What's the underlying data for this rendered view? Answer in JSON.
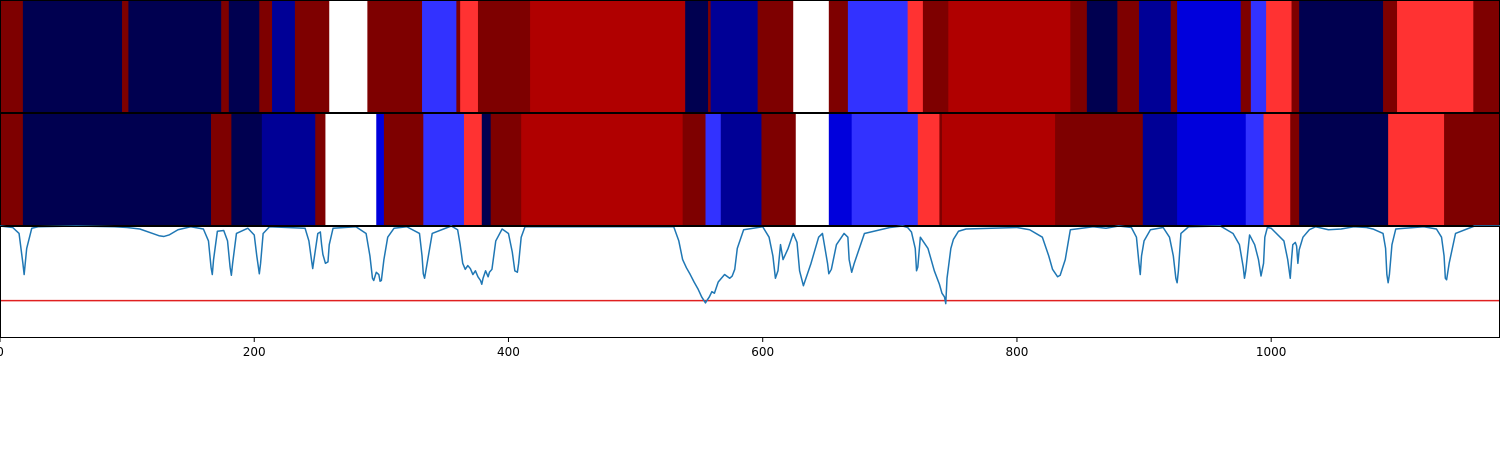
{
  "colors": {
    "navy": "#000050",
    "darkblue": "#000096",
    "blue": "#0000dc",
    "lightblue": "#3232ff",
    "white": "#ffffff",
    "lightred": "#ff3232",
    "red": "#b00000",
    "darkred": "#7e0000",
    "line": "#1f77b4",
    "threshold": "#e02020",
    "axes": "#000000"
  },
  "chart_data": [
    {
      "type": "heatmap",
      "xlim": [
        0,
        1180
      ],
      "segments": [
        [
          0,
          18,
          "darkred"
        ],
        [
          18,
          96,
          "navy"
        ],
        [
          96,
          101,
          "darkred"
        ],
        [
          101,
          174,
          "navy"
        ],
        [
          174,
          180,
          "darkred"
        ],
        [
          180,
          204,
          "navy"
        ],
        [
          204,
          214,
          "darkred"
        ],
        [
          214,
          232,
          "darkblue"
        ],
        [
          232,
          259,
          "darkred"
        ],
        [
          259,
          289,
          "white"
        ],
        [
          289,
          332,
          "darkred"
        ],
        [
          332,
          359,
          "lightblue"
        ],
        [
          359,
          362,
          "darkred"
        ],
        [
          362,
          376,
          "lightred"
        ],
        [
          376,
          417,
          "darkred"
        ],
        [
          417,
          539,
          "red"
        ],
        [
          539,
          557,
          "navy"
        ],
        [
          557,
          559,
          "darkred"
        ],
        [
          559,
          596,
          "darkblue"
        ],
        [
          596,
          624,
          "darkred"
        ],
        [
          624,
          652,
          "white"
        ],
        [
          652,
          667,
          "darkred"
        ],
        [
          667,
          714,
          "lightblue"
        ],
        [
          714,
          726,
          "lightred"
        ],
        [
          726,
          746,
          "darkred"
        ],
        [
          746,
          842,
          "red"
        ],
        [
          842,
          855,
          "darkred"
        ],
        [
          855,
          879,
          "navy"
        ],
        [
          879,
          896,
          "darkred"
        ],
        [
          896,
          921,
          "darkblue"
        ],
        [
          921,
          926,
          "darkred"
        ],
        [
          926,
          976,
          "blue"
        ],
        [
          976,
          984,
          "darkred"
        ],
        [
          984,
          996,
          "lightblue"
        ],
        [
          996,
          1016,
          "lightred"
        ],
        [
          1016,
          1022,
          "darkred"
        ],
        [
          1022,
          1088,
          "navy"
        ],
        [
          1088,
          1099,
          "darkred"
        ],
        [
          1099,
          1159,
          "lightred"
        ],
        [
          1159,
          1180,
          "darkred"
        ]
      ]
    },
    {
      "type": "heatmap",
      "xlim": [
        0,
        1180
      ],
      "segments": [
        [
          0,
          18,
          "darkred"
        ],
        [
          18,
          166,
          "navy"
        ],
        [
          166,
          182,
          "darkred"
        ],
        [
          182,
          206,
          "navy"
        ],
        [
          206,
          248,
          "darkblue"
        ],
        [
          248,
          256,
          "darkred"
        ],
        [
          256,
          296,
          "white"
        ],
        [
          296,
          302,
          "blue"
        ],
        [
          302,
          333,
          "darkred"
        ],
        [
          333,
          365,
          "lightblue"
        ],
        [
          365,
          379,
          "lightred"
        ],
        [
          379,
          386,
          "navy"
        ],
        [
          386,
          410,
          "darkred"
        ],
        [
          410,
          537,
          "red"
        ],
        [
          537,
          555,
          "darkred"
        ],
        [
          555,
          567,
          "lightblue"
        ],
        [
          567,
          599,
          "darkblue"
        ],
        [
          599,
          626,
          "darkred"
        ],
        [
          626,
          652,
          "white"
        ],
        [
          652,
          670,
          "blue"
        ],
        [
          670,
          722,
          "lightblue"
        ],
        [
          722,
          739,
          "lightred"
        ],
        [
          739,
          741,
          "darkred"
        ],
        [
          741,
          830,
          "red"
        ],
        [
          830,
          899,
          "darkred"
        ],
        [
          899,
          926,
          "darkblue"
        ],
        [
          926,
          980,
          "blue"
        ],
        [
          980,
          994,
          "lightblue"
        ],
        [
          994,
          1015,
          "lightred"
        ],
        [
          1015,
          1022,
          "darkred"
        ],
        [
          1022,
          1092,
          "navy"
        ],
        [
          1092,
          1136,
          "lightred"
        ],
        [
          1136,
          1180,
          "darkred"
        ]
      ]
    },
    {
      "type": "line",
      "xlim": [
        0,
        1180
      ],
      "ylim": [
        -0.5,
        1.0
      ],
      "series": [
        {
          "color": "line",
          "x": [
            0,
            10,
            15,
            18,
            19,
            21,
            25,
            30,
            60,
            90,
            100,
            110,
            120,
            125,
            129,
            133,
            140,
            150,
            160,
            164,
            166,
            167,
            168,
            171,
            176,
            179,
            181,
            182,
            183,
            186,
            195,
            200,
            202,
            204,
            205,
            207,
            212,
            240,
            243,
            245,
            246,
            247,
            250,
            252,
            253,
            254,
            256,
            258,
            259,
            262,
            280,
            288,
            291,
            293,
            294,
            296,
            298,
            299,
            300,
            302,
            305,
            310,
            320,
            330,
            332,
            333,
            334,
            336,
            340,
            355,
            360,
            362,
            364,
            366,
            368,
            370,
            372,
            374,
            376,
            378,
            379,
            380,
            382,
            384,
            385,
            387,
            390,
            395,
            400,
            403,
            405,
            407,
            408,
            410,
            413,
            530,
            534,
            537,
            540,
            543,
            546,
            549,
            552,
            555,
            556,
            558,
            560,
            562,
            565,
            570,
            574,
            576,
            578,
            580,
            585,
            600,
            605,
            608,
            610,
            612,
            614,
            616,
            620,
            624,
            627,
            629,
            632,
            638,
            644,
            647,
            649,
            651,
            652,
            654,
            658,
            664,
            667,
            668,
            670,
            672,
            680,
            700,
            710,
            714,
            717,
            720,
            721,
            722,
            724,
            730,
            735,
            739,
            741,
            743,
            744,
            745,
            748,
            750,
            754,
            760,
            780,
            800,
            810,
            820,
            825,
            828,
            830,
            832,
            834,
            838,
            842,
            860,
            870,
            880,
            890,
            894,
            896,
            897,
            898,
            900,
            905,
            915,
            920,
            923,
            925,
            926,
            927,
            929,
            935,
            960,
            970,
            975,
            978,
            979,
            980,
            983,
            987,
            990,
            992,
            994,
            995,
            997,
            1000,
            1010,
            1013,
            1015,
            1016,
            1017,
            1019,
            1020,
            1021,
            1022,
            1025,
            1030,
            1035,
            1045,
            1055,
            1065,
            1075,
            1080,
            1088,
            1090,
            1091,
            1092,
            1093,
            1095,
            1098,
            1120,
            1130,
            1134,
            1136,
            1137,
            1138,
            1140,
            1145,
            1160,
            1180
          ],
          "y": [
            1.0,
            0.98,
            0.9,
            0.5,
            0.35,
            0.7,
            0.97,
            0.99,
            1.0,
            0.99,
            0.98,
            0.96,
            0.9,
            0.87,
            0.86,
            0.88,
            0.95,
            0.99,
            0.96,
            0.8,
            0.45,
            0.35,
            0.55,
            0.93,
            0.94,
            0.8,
            0.45,
            0.34,
            0.5,
            0.9,
            0.97,
            0.88,
            0.6,
            0.36,
            0.5,
            0.9,
            0.99,
            0.97,
            0.8,
            0.55,
            0.43,
            0.55,
            0.9,
            0.92,
            0.75,
            0.62,
            0.5,
            0.52,
            0.75,
            0.97,
            0.99,
            0.9,
            0.6,
            0.3,
            0.27,
            0.38,
            0.35,
            0.26,
            0.27,
            0.55,
            0.85,
            0.97,
            0.99,
            0.9,
            0.6,
            0.36,
            0.3,
            0.5,
            0.9,
            1.0,
            0.95,
            0.75,
            0.5,
            0.42,
            0.47,
            0.43,
            0.35,
            0.4,
            0.32,
            0.27,
            0.22,
            0.3,
            0.4,
            0.32,
            0.38,
            0.42,
            0.8,
            0.96,
            0.9,
            0.65,
            0.4,
            0.38,
            0.5,
            0.85,
            0.99,
            0.99,
            0.8,
            0.55,
            0.44,
            0.35,
            0.25,
            0.16,
            0.05,
            -0.03,
            0.0,
            0.05,
            0.12,
            0.1,
            0.25,
            0.35,
            0.3,
            0.33,
            0.42,
            0.7,
            0.95,
            0.99,
            0.85,
            0.6,
            0.3,
            0.4,
            0.75,
            0.55,
            0.7,
            0.9,
            0.78,
            0.4,
            0.2,
            0.5,
            0.85,
            0.9,
            0.7,
            0.5,
            0.36,
            0.42,
            0.75,
            0.9,
            0.85,
            0.55,
            0.38,
            0.5,
            0.9,
            0.98,
            1.0,
            0.98,
            0.92,
            0.7,
            0.4,
            0.45,
            0.85,
            0.7,
            0.4,
            0.22,
            0.1,
            0.05,
            -0.04,
            0.3,
            0.7,
            0.82,
            0.93,
            0.96,
            0.97,
            0.98,
            0.95,
            0.85,
            0.6,
            0.42,
            0.37,
            0.32,
            0.34,
            0.55,
            0.95,
            0.99,
            0.97,
            1.0,
            0.98,
            0.85,
            0.5,
            0.35,
            0.6,
            0.8,
            0.95,
            0.98,
            0.85,
            0.6,
            0.3,
            0.24,
            0.4,
            0.9,
            0.99,
            1.0,
            0.9,
            0.75,
            0.45,
            0.3,
            0.4,
            0.88,
            0.75,
            0.55,
            0.33,
            0.5,
            0.85,
            0.98,
            0.97,
            0.8,
            0.55,
            0.3,
            0.55,
            0.75,
            0.78,
            0.73,
            0.5,
            0.68,
            0.85,
            0.95,
            0.99,
            0.95,
            0.96,
            0.99,
            0.98,
            0.96,
            0.9,
            0.7,
            0.35,
            0.24,
            0.35,
            0.75,
            0.96,
            0.99,
            0.96,
            0.85,
            0.6,
            0.3,
            0.28,
            0.5,
            0.9,
            1.0,
            1.0
          ]
        },
        {
          "color": "threshold",
          "x": [
            0,
            1180
          ],
          "y": [
            0.0,
            0.0
          ]
        }
      ]
    }
  ],
  "x_ticks": [
    {
      "value": 0,
      "label": "0"
    },
    {
      "value": 200,
      "label": "200"
    },
    {
      "value": 400,
      "label": "400"
    },
    {
      "value": 600,
      "label": "600"
    },
    {
      "value": 800,
      "label": "800"
    },
    {
      "value": 1000,
      "label": "1000"
    }
  ]
}
